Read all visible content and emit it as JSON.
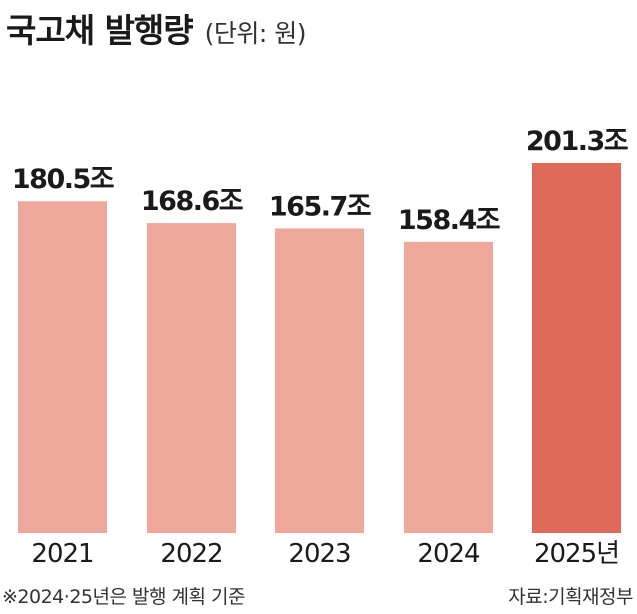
{
  "header": {
    "title": "국고채 발행량",
    "unit": "(단위: 원)"
  },
  "footer": {
    "note": "※2024·25년은 발행 계획 기준",
    "source": "자료:기획재정부"
  },
  "colors": {
    "bar": "#eea89b",
    "highlight": "#e06a59",
    "text": "#1a1a1a"
  },
  "chart_data": {
    "type": "bar",
    "categories": [
      "2021",
      "2022",
      "2023",
      "2024",
      "2025년"
    ],
    "values": [
      180.5,
      168.6,
      165.7,
      158.4,
      201.3
    ],
    "value_labels": [
      "180.5조",
      "168.6조",
      "165.7조",
      "158.4조",
      "201.3조"
    ],
    "highlight_index": 4,
    "title": "국고채 발행량",
    "unit": "(단위: 원)",
    "grid": false,
    "ylim": [
      0,
      201.3
    ]
  }
}
